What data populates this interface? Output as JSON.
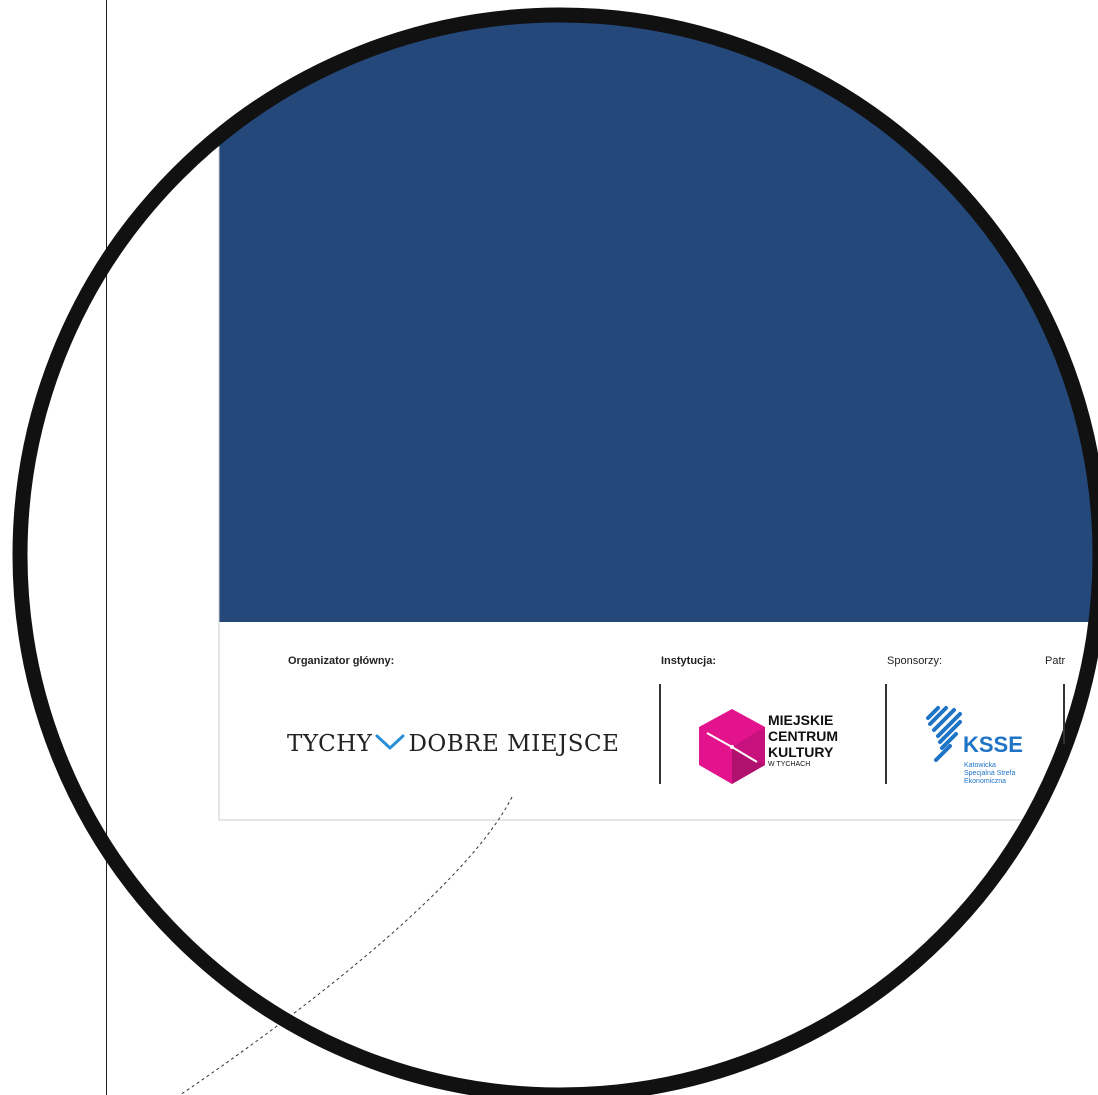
{
  "labels": {
    "organizer": "Organizator główny:",
    "institution": "Instytucja:",
    "sponsors": "Sponsorzy:",
    "patrons_partial": "Patr"
  },
  "logos": {
    "tychy": {
      "part1": "TYCHY",
      "part2": "DOBRE MIEJSCE"
    },
    "mck": {
      "line1": "MIEJSKIE",
      "line2": "CENTRUM",
      "line3": "KULTURY",
      "line4": "W TYCHACH"
    },
    "ksse": {
      "name": "KSSE",
      "line1": "Katowicka",
      "line2": "Specjalna Strefa",
      "line3": "Ekonomiczna"
    }
  },
  "colors": {
    "banner": "#25487a",
    "ring": "#111111",
    "mck_magenta": "#e3138d",
    "ksse_blue": "#1f74c6",
    "tychy_check": "#2a8fd6"
  }
}
